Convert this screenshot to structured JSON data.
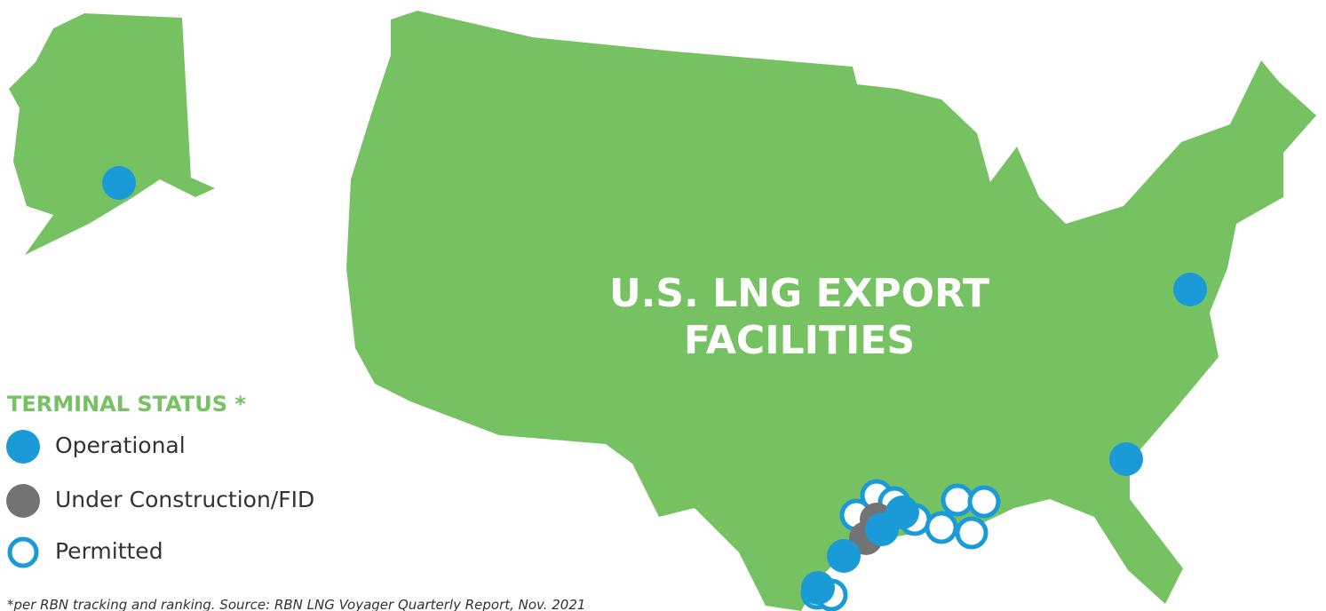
{
  "map": {
    "title_lines": [
      "U.S. LNG EXPORT",
      "FACILITIES"
    ],
    "legend": {
      "title": "TERMINAL STATUS *",
      "items": [
        "Operational",
        "Under Construction/FID",
        "Permitted"
      ]
    },
    "footnote": "*per RBN tracking and ranking. Source: RBN LNG Voyager Quarterly Report, Nov. 2021"
  }
}
